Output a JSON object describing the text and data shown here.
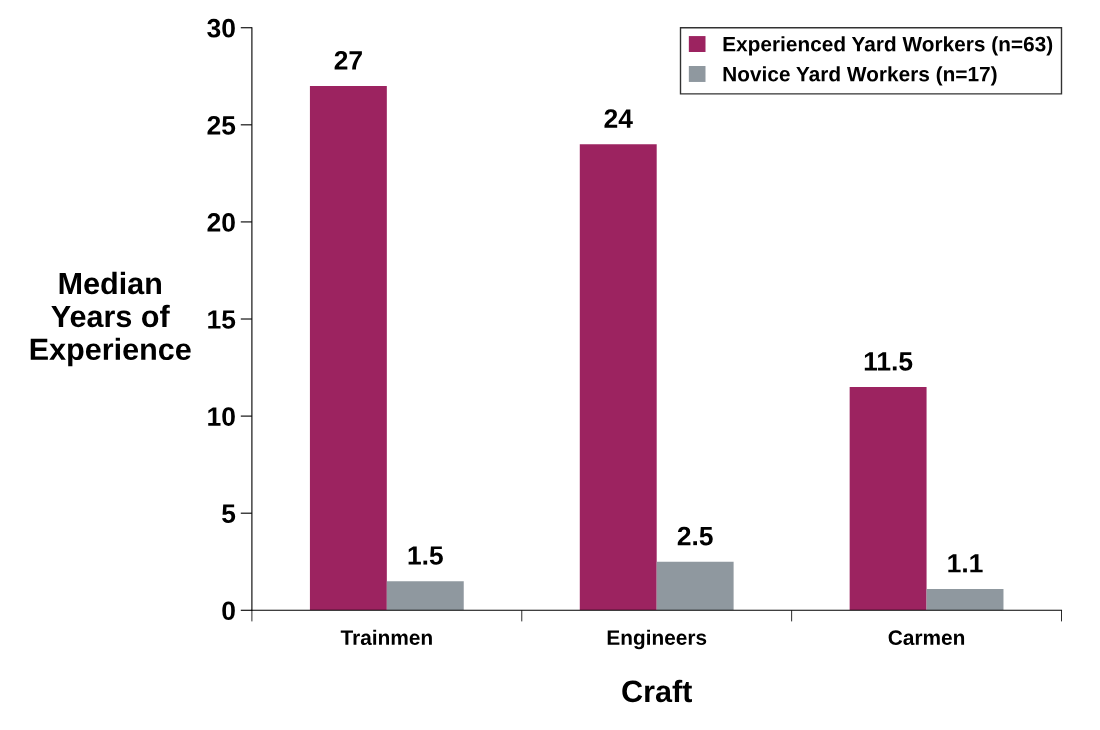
{
  "chart_data": {
    "type": "bar",
    "xlabel": "Craft",
    "ylabel": "Median\nYears of\nExperience",
    "categories": [
      "Trainmen",
      "Engineers",
      "Carmen"
    ],
    "series": [
      {
        "name": "Experienced Yard Workers (n=63)",
        "color": "#9c2360",
        "values": [
          27,
          24,
          11.5
        ]
      },
      {
        "name": "Novice Yard Workers (n=17)",
        "color": "#8f989f",
        "values": [
          1.5,
          2.5,
          1.1
        ]
      }
    ],
    "ylim": [
      0,
      30
    ],
    "yticks": [
      0,
      5,
      10,
      15,
      20,
      25,
      30
    ],
    "data_labels": true,
    "grid": false,
    "legend": "top right"
  }
}
